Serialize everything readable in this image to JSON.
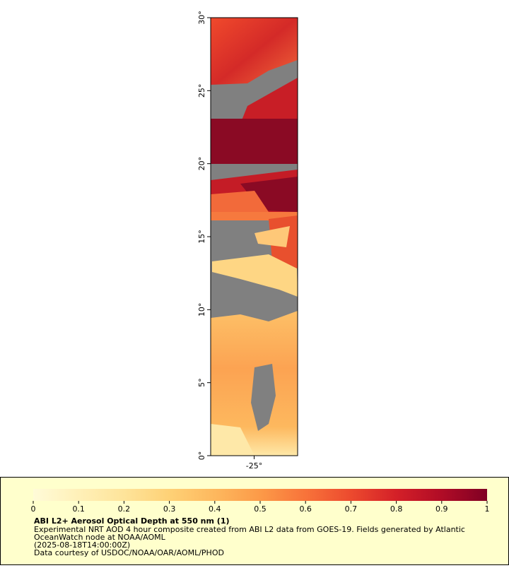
{
  "map": {
    "xlim": [
      -28,
      -22
    ],
    "ylim": [
      0,
      30
    ],
    "xticks": [
      {
        "value": -25,
        "label": "-25°"
      }
    ],
    "yticks": [
      {
        "value": 0,
        "label": "0°"
      },
      {
        "value": 5,
        "label": "5°"
      },
      {
        "value": 10,
        "label": "10°"
      },
      {
        "value": 15,
        "label": "15°"
      },
      {
        "value": 20,
        "label": "20°"
      },
      {
        "value": 25,
        "label": "25°"
      },
      {
        "value": 30,
        "label": "30°"
      }
    ]
  },
  "colorbar": {
    "range": [
      0,
      1
    ],
    "ticks": [
      0,
      0.1,
      0.2,
      0.3,
      0.4,
      0.5,
      0.6,
      0.7,
      0.8,
      0.9,
      1
    ],
    "palette": [
      "#fffbd8",
      "#fff0b8",
      "#fee49a",
      "#fed176",
      "#fdb85e",
      "#fc9a48",
      "#f8733a",
      "#ec4a2e",
      "#d42028",
      "#b00c26",
      "#800024"
    ]
  },
  "legend": {
    "title": "ABI L2+ Aerosol Optical Depth at 550 nm (1)",
    "lines": [
      "Experimental NRT AOD 4 hour composite created from ABI L2 data from GOES-19. Fields generated by Atlantic",
      "OceanWatch node at NOAA/AOML",
      "(2025-08-18T14:00:00Z)",
      "Data courtesy of USDOC/NOAA/OAR/AOML/PHOD"
    ]
  }
}
